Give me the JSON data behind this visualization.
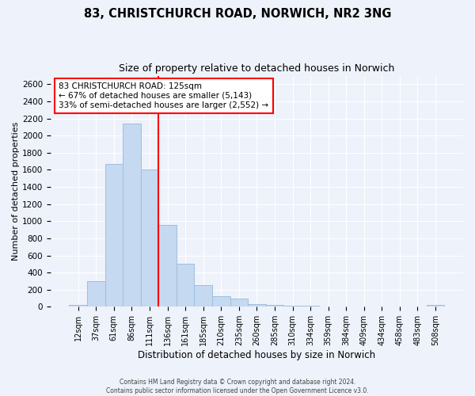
{
  "title": "83, CHRISTCHURCH ROAD, NORWICH, NR2 3NG",
  "subtitle": "Size of property relative to detached houses in Norwich",
  "xlabel": "Distribution of detached houses by size in Norwich",
  "ylabel": "Number of detached properties",
  "bar_color": "#c5d9f0",
  "bar_edge_color": "#a0bedd",
  "vline_color": "red",
  "categories": [
    "12sqm",
    "37sqm",
    "61sqm",
    "86sqm",
    "111sqm",
    "136sqm",
    "161sqm",
    "185sqm",
    "210sqm",
    "235sqm",
    "260sqm",
    "285sqm",
    "310sqm",
    "334sqm",
    "359sqm",
    "384sqm",
    "409sqm",
    "434sqm",
    "458sqm",
    "483sqm",
    "508sqm"
  ],
  "values": [
    20,
    295,
    1670,
    2140,
    1600,
    960,
    505,
    250,
    120,
    95,
    35,
    20,
    8,
    8,
    5,
    5,
    5,
    5,
    5,
    5,
    20
  ],
  "ylim": [
    0,
    2700
  ],
  "yticks": [
    0,
    200,
    400,
    600,
    800,
    1000,
    1200,
    1400,
    1600,
    1800,
    2000,
    2200,
    2400,
    2600
  ],
  "annotation_title": "83 CHRISTCHURCH ROAD: 125sqm",
  "annotation_line1": "← 67% of detached houses are smaller (5,143)",
  "annotation_line2": "33% of semi-detached houses are larger (2,552) →",
  "annotation_box_color": "white",
  "annotation_box_edge": "red",
  "footer_line1": "Contains HM Land Registry data © Crown copyright and database right 2024.",
  "footer_line2": "Contains public sector information licensed under the Open Government Licence v3.0.",
  "background_color": "#eef2fb",
  "plot_bg_color": "#eef2fb",
  "grid_color": "white"
}
